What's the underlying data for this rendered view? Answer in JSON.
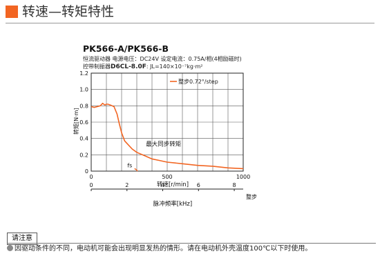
{
  "header": {
    "title": "转速—转矩特性",
    "accent_color": "#f26522"
  },
  "model": "PK566-A/PK566-B",
  "conditions": {
    "line1": "恒流驱动器  电源电压：DC24V    设定电流：0.75A/相(4相励磁时)",
    "line2_prefix": "控带制振器",
    "line2_bold": "D6CL-8.0F",
    "line2_suffix": ":  JL=140×10⁻⁷kg·m²"
  },
  "chart_data": {
    "type": "line",
    "ylabel": "转矩[N·m]",
    "xlabel": "转速[r/min]",
    "x2label": "脉冲频率[kHz]",
    "x2unit": "整步",
    "xlim": [
      0,
      1000
    ],
    "ylim": [
      0,
      1.2
    ],
    "x2lim": [
      0,
      8.5
    ],
    "yticks": [
      "0",
      "0.2",
      "0.4",
      "0.6",
      "0.8",
      "1.0",
      "1.2"
    ],
    "xticks": [
      "0",
      "500",
      "1000"
    ],
    "x2ticks": [
      "0",
      "2",
      "4",
      "6",
      "8"
    ],
    "grid": true,
    "legend_position": "top-right",
    "line_color": "#f26522",
    "series": [
      {
        "name": "整步0.72°/step",
        "x": [
          0,
          20,
          40,
          60,
          75,
          90,
          100,
          110,
          125,
          150,
          170,
          185,
          200,
          220,
          240,
          270,
          300,
          350,
          400,
          450,
          500,
          600,
          700,
          800,
          900,
          1000
        ],
        "y": [
          0.79,
          0.78,
          0.79,
          0.8,
          0.83,
          0.81,
          0.82,
          0.82,
          0.81,
          0.79,
          0.7,
          0.58,
          0.47,
          0.37,
          0.33,
          0.27,
          0.23,
          0.19,
          0.15,
          0.13,
          0.11,
          0.09,
          0.07,
          0.06,
          0.04,
          0.03
        ]
      }
    ],
    "fs_curve": {
      "x": [
        285,
        295,
        300,
        305
      ],
      "y": [
        0.03,
        0.02,
        0.01,
        0.0
      ]
    },
    "annotations": [
      {
        "text": "最大同步转矩",
        "x": 360,
        "y": 0.31
      },
      {
        "text": "fs",
        "x": 238,
        "y": 0.03
      }
    ]
  },
  "notes": {
    "header": "请注意",
    "text": "因驱动条件的不同，电动机可能会出现明显发热的情形。请在电动机外壳温度100℃以下时使用。"
  }
}
